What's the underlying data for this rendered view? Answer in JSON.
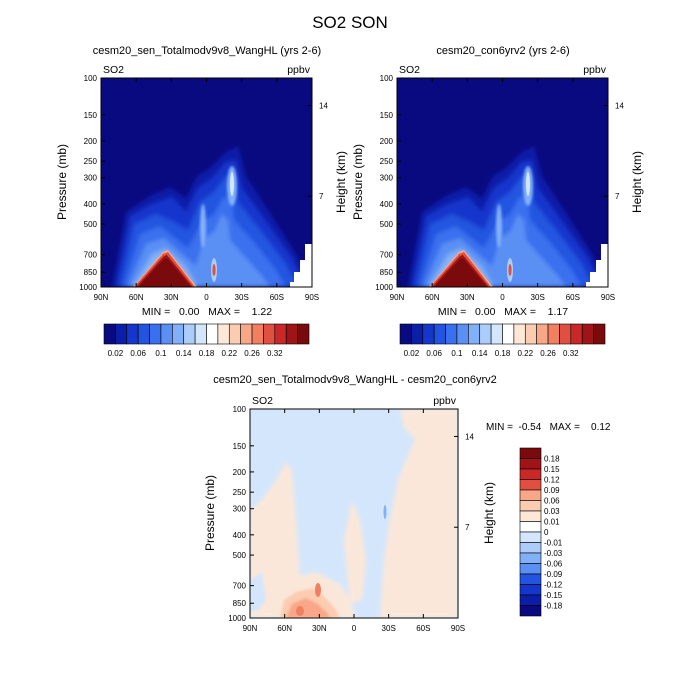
{
  "main_title": "SO2 SON",
  "colors": {
    "palette_pos": [
      "#0a0a80",
      "#0c1ea8",
      "#1436cc",
      "#2254e0",
      "#3a70ee",
      "#5a90f4",
      "#82b0f8",
      "#acccfa",
      "#d4e6fc",
      "#ffffff",
      "#fde8d8",
      "#fcccb0",
      "#f8a888",
      "#f08060",
      "#e05040",
      "#c82828",
      "#a01418",
      "#7a0a0c"
    ],
    "palette_diff": [
      "#0a0a80",
      "#0c1ea8",
      "#1436cc",
      "#2254e0",
      "#3a70ee",
      "#5a90f4",
      "#82b0f8",
      "#acccfa",
      "#d4e6fc",
      "#ffffff",
      "#fde8d8",
      "#fcccb0",
      "#f8a888",
      "#f08060",
      "#e05040",
      "#c82828",
      "#a01418",
      "#7a0a0c"
    ]
  },
  "chart_data": [
    {
      "type": "heatmap",
      "title": "cesm20_sen_Totalmodv9v8_WangHL (yrs 2-6)",
      "variable_label": "SO2",
      "units_label": "ppbv",
      "ylabel": "Pressure (mb)",
      "ylabel_right": "Height (km)",
      "x_ticks": [
        "90N",
        "60N",
        "30N",
        "0",
        "30S",
        "60S",
        "90S"
      ],
      "x_range": [
        90,
        -90
      ],
      "y_ticks": [
        100,
        150,
        200,
        250,
        300,
        400,
        500,
        700,
        850,
        1000
      ],
      "y_range": [
        100,
        1000
      ],
      "y_scale": "log",
      "height_ticks": [
        14,
        7
      ],
      "min_max_text": "MIN =   0.00   MAX =    1.22",
      "min": 0.0,
      "max": 1.22,
      "colorbar_labels": [
        "0.02",
        "0.06",
        "0.1",
        "0.14",
        "0.18",
        "0.22",
        "0.26",
        "0.32"
      ]
    },
    {
      "type": "heatmap",
      "title": "cesm20_con6yrv2 (yrs 2-6)",
      "variable_label": "SO2",
      "units_label": "ppbv",
      "ylabel": "Pressure (mb)",
      "ylabel_right": "Height (km)",
      "x_ticks": [
        "90N",
        "60N",
        "30N",
        "0",
        "30S",
        "60S",
        "90S"
      ],
      "x_range": [
        90,
        -90
      ],
      "y_ticks": [
        100,
        150,
        200,
        250,
        300,
        400,
        500,
        700,
        850,
        1000
      ],
      "y_range": [
        100,
        1000
      ],
      "y_scale": "log",
      "height_ticks": [
        14,
        7
      ],
      "min_max_text": "MIN =   0.00   MAX =    1.17",
      "min": 0.0,
      "max": 1.17,
      "colorbar_labels": [
        "0.02",
        "0.06",
        "0.1",
        "0.14",
        "0.18",
        "0.22",
        "0.26",
        "0.32"
      ]
    },
    {
      "type": "heatmap",
      "title": "cesm20_sen_Totalmodv9v8_WangHL - cesm20_con6yrv2",
      "variable_label": "SO2",
      "units_label": "ppbv",
      "ylabel": "Pressure (mb)",
      "ylabel_right": "Height (km)",
      "x_ticks": [
        "90N",
        "60N",
        "30N",
        "0",
        "30S",
        "60S",
        "90S"
      ],
      "x_range": [
        90,
        -90
      ],
      "y_ticks": [
        100,
        150,
        200,
        250,
        300,
        400,
        500,
        700,
        850,
        1000
      ],
      "y_range": [
        100,
        1000
      ],
      "y_scale": "log",
      "height_ticks": [
        14,
        7
      ],
      "min_max_text": "MIN =  -0.54   MAX =    0.12",
      "min": -0.54,
      "max": 0.12,
      "colorbar_labels": [
        "0.18",
        "0.15",
        "0.12",
        "0.09",
        "0.06",
        "0.03",
        "0.01",
        "0",
        "-0.01",
        "-0.03",
        "-0.06",
        "-0.09",
        "-0.12",
        "-0.15",
        "-0.18"
      ]
    }
  ]
}
